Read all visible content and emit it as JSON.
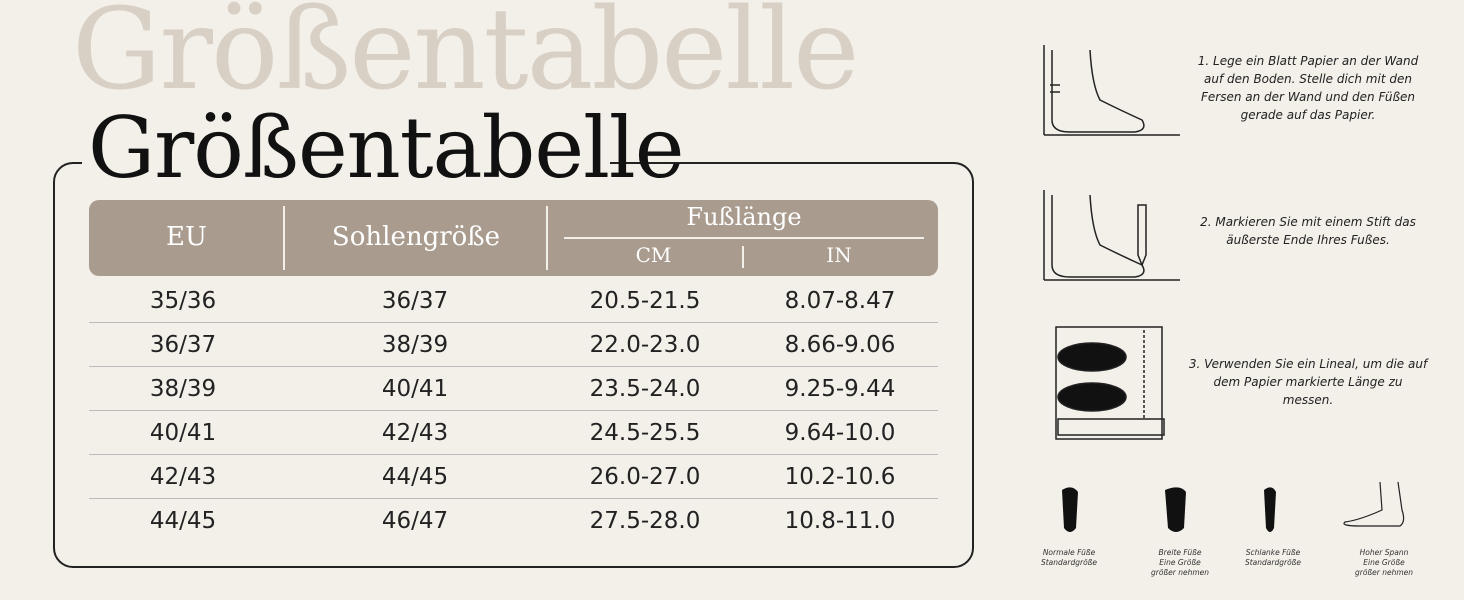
{
  "title": "Größentabelle",
  "watermark": "Größentabelle",
  "table": {
    "headers": {
      "eu": "EU",
      "sole": "Sohlengröße",
      "foot_length": "Fußlänge",
      "cm": "CM",
      "in": "IN"
    },
    "rows": [
      [
        "35/36",
        "36/37",
        "20.5-21.5",
        "8.07-8.47"
      ],
      [
        "36/37",
        "38/39",
        "22.0-23.0",
        "8.66-9.06"
      ],
      [
        "38/39",
        "40/41",
        "23.5-24.0",
        "9.25-9.44"
      ],
      [
        "40/41",
        "42/43",
        "24.5-25.5",
        "9.64-10.0"
      ],
      [
        "42/43",
        "44/45",
        "26.0-27.0",
        "10.2-10.6"
      ],
      [
        "44/45",
        "46/47",
        "27.5-28.0",
        "10.8-11.0"
      ]
    ]
  },
  "steps": [
    "1. Lege ein Blatt Papier an der Wand auf den Boden. Stelle dich mit den Fersen an der Wand und den Füßen gerade auf das Papier.",
    "2. Markieren Sie mit einem Stift das äußerste Ende Ihres Fußes.",
    "3. Verwenden Sie ein Lineal, um die auf dem Papier markierte Länge zu messen."
  ],
  "foot_types": [
    {
      "name": "Normale Füße",
      "advice": "Standardgröße"
    },
    {
      "name": "Breite Füße",
      "advice": "Eine Größe größer nehmen"
    },
    {
      "name": "Schlanke Füße",
      "advice": "Standardgröße"
    },
    {
      "name": "Hoher Spann",
      "advice": "Eine Größe größer nehmen"
    }
  ],
  "colors": {
    "background": "#f3efe9",
    "header": "#a99c8f",
    "watermark": "#d8d0c4"
  }
}
